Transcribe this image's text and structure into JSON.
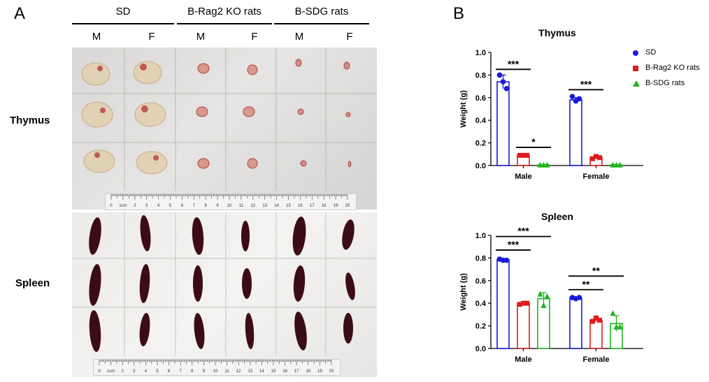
{
  "panel_a": {
    "letter": "A",
    "groups": [
      "SD",
      "B-Rag2 KO rats",
      "B-SDG rats"
    ],
    "sexes": [
      "M",
      "F",
      "M",
      "F",
      "M",
      "F"
    ],
    "rows": [
      "Thymus",
      "Spleen"
    ],
    "ruler_numbers": [
      "0",
      "1cm",
      "2",
      "3",
      "4",
      "5",
      "6",
      "7",
      "8",
      "9",
      "10",
      "11",
      "12",
      "13",
      "14",
      "15",
      "16",
      "17",
      "18",
      "19",
      "20"
    ]
  },
  "panel_b": {
    "letter": "B",
    "legend": [
      {
        "label": "SD",
        "color": "#1a1adb",
        "marker": "circle"
      },
      {
        "label": "B-Rag2 KO rats",
        "color": "#e01b1b",
        "marker": "square"
      },
      {
        "label": "B-SDG rats",
        "color": "#1fb51f",
        "marker": "triangle"
      }
    ]
  },
  "chart_data": [
    {
      "type": "bar",
      "title": "Thymus",
      "ylabel": "Weight (g)",
      "ylim": [
        0,
        1.0
      ],
      "yticks": [
        "0.0",
        "0.2",
        "0.4",
        "0.6",
        "0.8",
        "1.0"
      ],
      "categories": [
        "Male",
        "Female"
      ],
      "series": [
        {
          "name": "SD",
          "values": [
            0.74,
            0.58
          ],
          "points": [
            [
              0.8,
              0.74,
              0.68
            ],
            [
              0.61,
              0.57,
              0.59
            ]
          ]
        },
        {
          "name": "B-Rag2 KO rats",
          "values": [
            0.09,
            0.07
          ],
          "points": [
            [
              0.09,
              0.09,
              0.09
            ],
            [
              0.06,
              0.08,
              0.07
            ]
          ]
        },
        {
          "name": "B-SDG rats",
          "values": [
            0.005,
            0.005
          ],
          "points": [
            [
              0.005,
              0.005,
              0.005
            ],
            [
              0.005,
              0.005,
              0.005
            ]
          ]
        }
      ],
      "significance": [
        {
          "category": 0,
          "from": 0,
          "to": 1,
          "y": 0.85,
          "label": "***"
        },
        {
          "category": 0,
          "from": 1,
          "to": 2,
          "y": 0.16,
          "label": "*"
        },
        {
          "category": 1,
          "from": 0,
          "to": 1,
          "y": 0.67,
          "label": "***"
        }
      ]
    },
    {
      "type": "bar",
      "title": "Spleen",
      "ylabel": "Weight (g)",
      "ylim": [
        0,
        1.0
      ],
      "yticks": [
        "0.0",
        "0.2",
        "0.4",
        "0.6",
        "0.8",
        "1.0"
      ],
      "categories": [
        "Male",
        "Female"
      ],
      "series": [
        {
          "name": "SD",
          "values": [
            0.785,
            0.445
          ],
          "points": [
            [
              0.79,
              0.78,
              0.78
            ],
            [
              0.45,
              0.44,
              0.45
            ]
          ]
        },
        {
          "name": "B-Rag2 KO rats",
          "values": [
            0.4,
            0.25
          ],
          "points": [
            [
              0.39,
              0.4,
              0.4
            ],
            [
              0.24,
              0.27,
              0.25
            ]
          ]
        },
        {
          "name": "B-SDG rats",
          "values": [
            0.44,
            0.22
          ],
          "points": [
            [
              0.48,
              0.38,
              0.46
            ],
            [
              0.31,
              0.19,
              0.19
            ]
          ]
        }
      ],
      "significance": [
        {
          "category": 0,
          "from": 0,
          "to": 1,
          "y": 0.87,
          "label": "***"
        },
        {
          "category": 0,
          "from": 0,
          "to": 2,
          "y": 0.99,
          "label": "***"
        },
        {
          "category": 1,
          "from": 0,
          "to": 1,
          "y": 0.52,
          "label": "**"
        },
        {
          "category": 1,
          "from": 0,
          "to": 2,
          "y": 0.64,
          "label": "**"
        }
      ]
    }
  ]
}
